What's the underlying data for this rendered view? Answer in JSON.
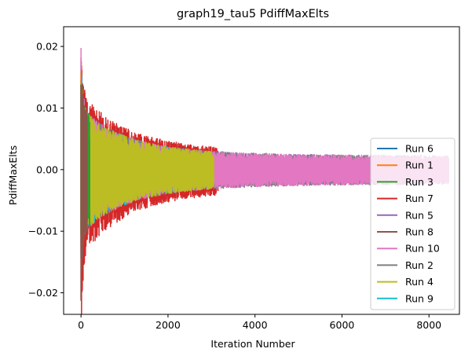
{
  "chart_data": {
    "type": "line",
    "title": "graph19_tau5 PdiffMaxElts",
    "xlabel": "Iteration Number",
    "ylabel": "PdiffMaxElts",
    "xlim": [
      -400,
      8700
    ],
    "ylim": [
      -0.0235,
      0.0232
    ],
    "xticks": [
      0,
      2000,
      4000,
      6000,
      8000
    ],
    "xtick_labels": [
      "0",
      "2000",
      "4000",
      "6000",
      "8000"
    ],
    "yticks": [
      -0.02,
      -0.01,
      0.0,
      0.01,
      0.02
    ],
    "ytick_labels": [
      "−0.02",
      "−0.01",
      "0.00",
      "0.01",
      "0.02"
    ],
    "grid": false,
    "legend_position": "lower-right",
    "series": [
      {
        "name": "Run 6",
        "color": "#1f77b4",
        "iterations": 90,
        "lo": -0.0145,
        "hi": 0.0175
      },
      {
        "name": "Run 1",
        "color": "#ff7f0e",
        "iterations": 110,
        "lo": -0.0145,
        "hi": 0.0165
      },
      {
        "name": "Run 3",
        "color": "#2ca02c",
        "iterations": 200,
        "lo": -0.013,
        "hi": 0.016
      },
      {
        "name": "Run 7",
        "color": "#d62728",
        "iterations": 3150,
        "lo": -0.0215,
        "hi": 0.0165
      },
      {
        "name": "Run 5",
        "color": "#9467bd",
        "iterations": 8450,
        "lo": -0.0155,
        "hi": 0.014
      },
      {
        "name": "Run 8",
        "color": "#8c564b",
        "iterations": 140,
        "lo": -0.0215,
        "hi": 0.015
      },
      {
        "name": "Run 10",
        "color": "#e377c2",
        "iterations": 8450,
        "lo": -0.015,
        "hi": 0.0212
      },
      {
        "name": "Run 2",
        "color": "#7f7f7f",
        "iterations": 7750,
        "lo": -0.0155,
        "hi": 0.0145
      },
      {
        "name": "Run 4",
        "color": "#bcbd22",
        "iterations": 3050,
        "lo": -0.015,
        "hi": 0.015
      },
      {
        "name": "Run 9",
        "color": "#17becf",
        "iterations": 2350,
        "lo": -0.0145,
        "hi": 0.0175
      }
    ]
  }
}
